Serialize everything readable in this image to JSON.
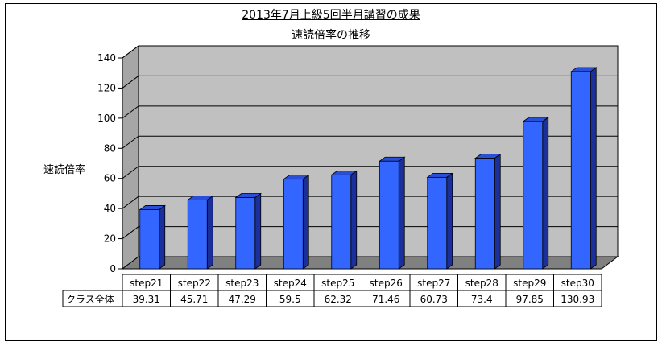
{
  "chart_data": {
    "type": "bar",
    "title": "2013年7月上級5回半月講習の成果",
    "subtitle": "速読倍率の推移",
    "ylabel": "速読倍率",
    "xlabel": "",
    "ylim": [
      0,
      140
    ],
    "yticks": [
      0,
      20,
      40,
      60,
      80,
      100,
      120,
      140
    ],
    "grid": true,
    "style": "3d",
    "categories": [
      "step21",
      "step22",
      "step23",
      "step24",
      "step25",
      "step26",
      "step27",
      "step28",
      "step29",
      "step30"
    ],
    "series": [
      {
        "name": "クラス全体",
        "values": [
          39.31,
          45.71,
          47.29,
          59.5,
          62.32,
          71.46,
          60.73,
          73.4,
          97.85,
          130.93
        ],
        "labels": [
          "39.31",
          "45.71",
          "47.29",
          "59.5",
          "62.32",
          "71.46",
          "60.73",
          "73.4",
          "97.85",
          "130.93"
        ]
      }
    ],
    "colors": {
      "bar_front": "#3366ff",
      "bar_side": "#1a2f99",
      "bar_top": "#2a4fd6",
      "back_wall": "#c0c0c0",
      "floor": "#808080"
    }
  }
}
